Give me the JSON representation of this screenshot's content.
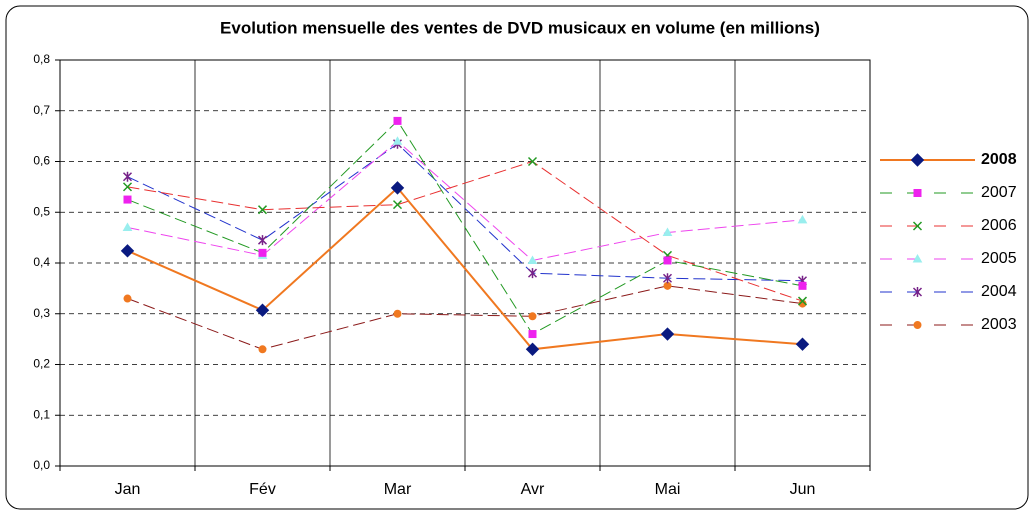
{
  "chart_data": {
    "type": "line",
    "title": "Evolution mensuelle des ventes de DVD musicaux en volume (en millions)",
    "categories": [
      "Jan",
      "Fév",
      "Mar",
      "Avr",
      "Mai",
      "Jun"
    ],
    "ylim": [
      0,
      0.8
    ],
    "yticks": [
      {
        "value": 0,
        "label": "0,0"
      },
      {
        "value": 0.1,
        "label": "0,1"
      },
      {
        "value": 0.2,
        "label": "0,2"
      },
      {
        "value": 0.3,
        "label": "0,3"
      },
      {
        "value": 0.4,
        "label": "0,4"
      },
      {
        "value": 0.5,
        "label": "0,5"
      },
      {
        "value": 0.6,
        "label": "0,6"
      },
      {
        "value": 0.7,
        "label": "0,7"
      },
      {
        "value": 0.8,
        "label": "0,8"
      }
    ],
    "grid": true,
    "legend": "right",
    "series": [
      {
        "name": "2008",
        "color": "#f07820",
        "marker_color": "#0a1a80",
        "marker": "diamond",
        "line_style": "solid",
        "values": [
          0.424,
          0.307,
          0.548,
          0.23,
          0.26,
          0.24
        ]
      },
      {
        "name": "2007",
        "color": "#229922",
        "marker_color": "#ee22ee",
        "marker": "square",
        "line_style": "dashed",
        "values": [
          0.525,
          0.42,
          0.68,
          0.26,
          0.405,
          0.355
        ]
      },
      {
        "name": "2006",
        "color": "#e83030",
        "marker_color": "#229922",
        "marker": "x",
        "line_style": "dashed",
        "values": [
          0.55,
          0.505,
          0.515,
          0.6,
          0.415,
          0.325
        ]
      },
      {
        "name": "2005",
        "color": "#ee44ee",
        "marker_color": "#99eeee",
        "marker": "triangle",
        "line_style": "dashed",
        "values": [
          0.47,
          0.415,
          0.64,
          0.405,
          0.46,
          0.485
        ]
      },
      {
        "name": "2004",
        "color": "#2233cc",
        "marker_color": "#772288",
        "marker": "asterisk",
        "line_style": "dashed",
        "values": [
          0.57,
          0.445,
          0.635,
          0.38,
          0.37,
          0.365
        ]
      },
      {
        "name": "2003",
        "color": "#8b1a1a",
        "marker_color": "#f07820",
        "marker": "circle",
        "line_style": "dashed",
        "values": [
          0.33,
          0.23,
          0.3,
          0.295,
          0.355,
          0.32
        ]
      }
    ]
  }
}
